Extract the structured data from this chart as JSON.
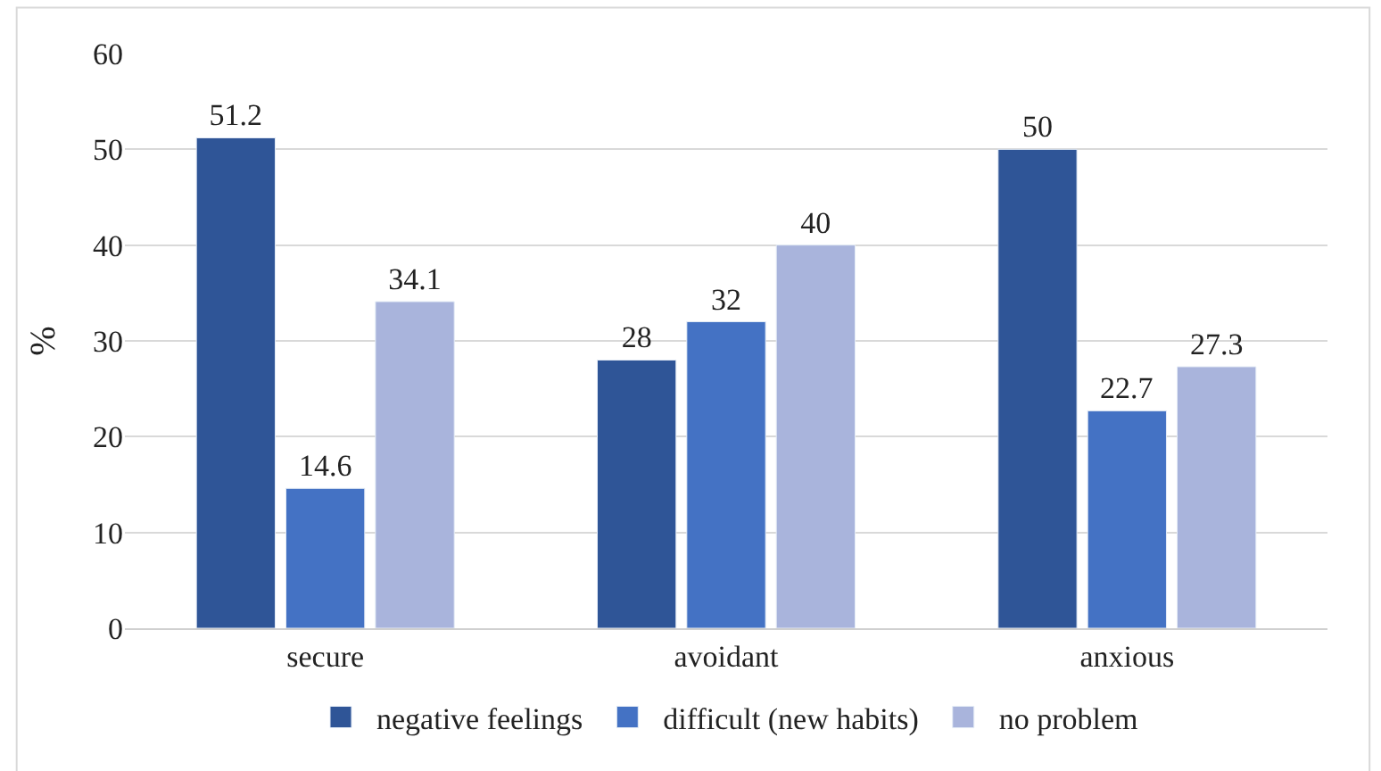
{
  "chart_data": {
    "type": "bar",
    "ylabel": "%",
    "categories": [
      "secure",
      "avoidant",
      "anxious"
    ],
    "series": [
      {
        "name": "negative feelings",
        "color": "#2f5597",
        "values": [
          51.2,
          28,
          50
        ]
      },
      {
        "name": "difficult (new habits)",
        "color": "#4472c4",
        "values": [
          14.6,
          32,
          22.7
        ]
      },
      {
        "name": "no problem",
        "color": "#a9b4dc",
        "values": [
          34.1,
          40,
          27.3
        ]
      }
    ],
    "ylim": [
      0,
      60
    ],
    "yticks": [
      0,
      10,
      20,
      30,
      40,
      50,
      60
    ],
    "grid": "y",
    "legend": "bottom",
    "data_labels": true
  }
}
